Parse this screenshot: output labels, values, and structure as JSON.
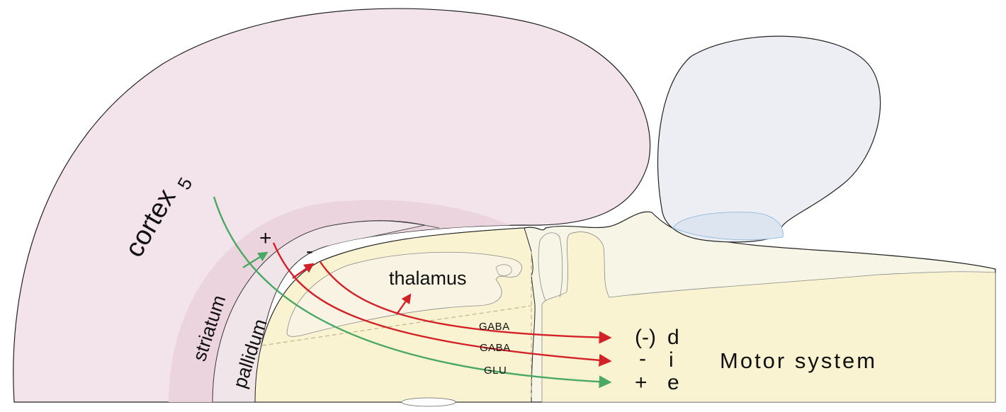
{
  "regions": {
    "cortex": "cortex",
    "cortex_layer": "5",
    "striatum": "striatum",
    "pallidum": "pallidum",
    "thalamus": "thalamus"
  },
  "signs": {
    "cortex_to_striatum": "+",
    "striatum_to_pallidum": "-"
  },
  "pathways": [
    {
      "neurotransmitter": "GABA",
      "sign": "(-)",
      "letter": "d",
      "color": "#d42027"
    },
    {
      "neurotransmitter": "GABA",
      "sign": "-",
      "letter": "i",
      "color": "#d42027"
    },
    {
      "neurotransmitter": "GLU",
      "sign": "+",
      "letter": "e",
      "color": "#4aa865"
    }
  ],
  "target": "Motor system",
  "colors": {
    "cortex_fill": "#f2e4ea",
    "striatum_fill": "#ecd4de",
    "thalamus_fill": "#faf3d2",
    "brainstem_fill": "#f7f5e6",
    "tectum_fill": "#eceef3",
    "inhibitory": "#d42027",
    "excitatory": "#4aa865"
  }
}
